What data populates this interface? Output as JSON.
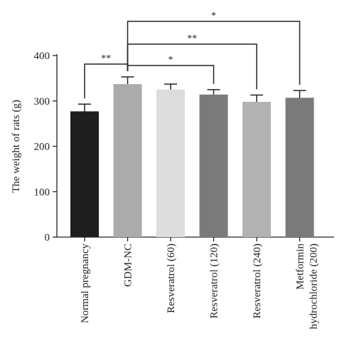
{
  "chart_data": {
    "type": "bar",
    "title": "",
    "xlabel": "",
    "ylabel": "The weight of rats (g)",
    "ylim": [
      0,
      400
    ],
    "yticks": [
      0,
      100,
      200,
      300,
      400
    ],
    "categories": [
      [
        "Normal pregnancy"
      ],
      [
        "GDM-NC"
      ],
      [
        "Resveratrol (60)"
      ],
      [
        "Resveratrol (120)"
      ],
      [
        "Resveratrol (240)"
      ],
      [
        "Metformin",
        "hydrochloride (200)"
      ]
    ],
    "values": [
      277,
      337,
      325,
      314,
      298,
      307
    ],
    "errors": [
      16,
      16,
      12,
      11,
      15,
      16
    ],
    "colors": [
      "#1e1e1e",
      "#ababab",
      "#dcdcdc",
      "#7a7a7a",
      "#b2b2b2",
      "#7a7a7a"
    ],
    "grid": false,
    "legend": "none",
    "significance": [
      {
        "from": 0,
        "to": 1,
        "label": "**"
      },
      {
        "from": 1,
        "to": 3,
        "label": "*"
      },
      {
        "from": 1,
        "to": 4,
        "label": "**"
      },
      {
        "from": 1,
        "to": 5,
        "label": "*"
      }
    ]
  }
}
